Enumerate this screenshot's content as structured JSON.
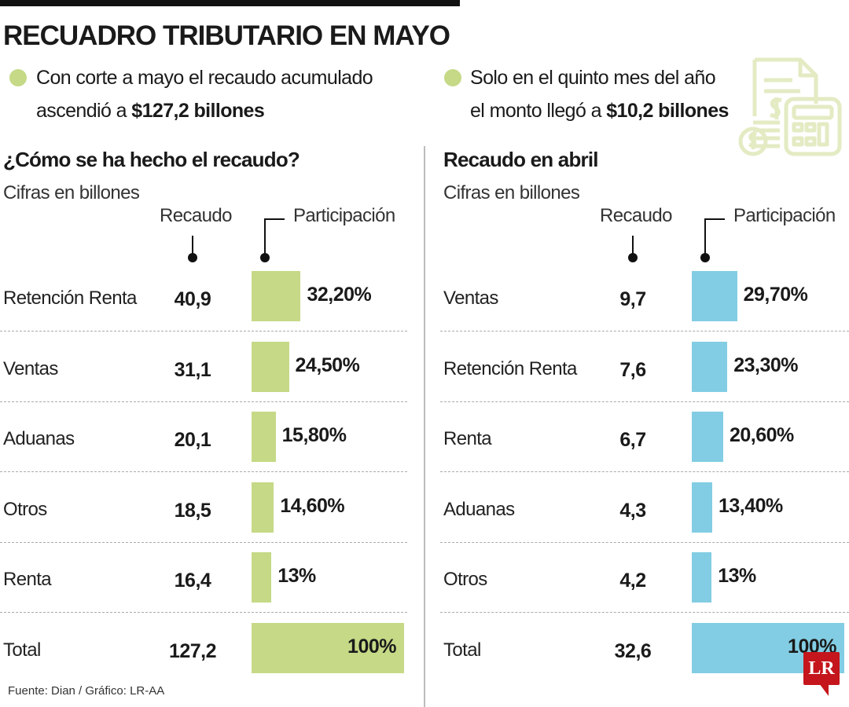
{
  "title": "RECUADRO TRIBUTARIO EN MAYO",
  "bullets": [
    {
      "line1": "Con corte a mayo el recaudo acumulado",
      "line2_prefix": "ascendió a ",
      "line2_bold": "$127,2 billones"
    },
    {
      "line1": "Solo en el quinto mes del año",
      "line2_prefix": "el monto llegó a ",
      "line2_bold": "$10,2 billones"
    }
  ],
  "icon": "tax-document-calculator-coins-icon",
  "colors": {
    "left_bar": "#c5d986",
    "right_bar": "#82cde3",
    "bullet": "#c5d986",
    "logo": "#c4161c"
  },
  "col_headers": {
    "recaudo": "Recaudo",
    "participacion": "Participación"
  },
  "source": "Fuente: Dian / Gráfico: LR-AA",
  "logo_text": "LR",
  "chart_data": [
    {
      "type": "bar",
      "title": "¿Cómo se ha hecho el recaudo?",
      "subtitle": "Cifras en billones",
      "categories": [
        "Retención Renta",
        "Ventas",
        "Aduanas",
        "Otros",
        "Renta",
        "Total"
      ],
      "recaudo": [
        "40,9",
        "31,1",
        "20,1",
        "18,5",
        "16,4",
        "127,2"
      ],
      "participacion_labels": [
        "32,20%",
        "24,50%",
        "15,80%",
        "14,60%",
        "13%",
        "100%"
      ],
      "values": [
        32.2,
        24.5,
        15.8,
        14.6,
        13,
        100
      ],
      "xlim": [
        0,
        100
      ]
    },
    {
      "type": "bar",
      "title": "Recaudo en abril",
      "subtitle": "Cifras en billones",
      "categories": [
        "Ventas",
        "Retención Renta",
        "Renta",
        "Aduanas",
        "Otros",
        "Total"
      ],
      "recaudo": [
        "9,7",
        "7,6",
        "6,7",
        "4,3",
        "4,2",
        "32,6"
      ],
      "participacion_labels": [
        "29,70%",
        "23,30%",
        "20,60%",
        "13,40%",
        "13%",
        "100%"
      ],
      "values": [
        29.7,
        23.3,
        20.6,
        13.4,
        13,
        100
      ],
      "xlim": [
        0,
        100
      ]
    }
  ]
}
